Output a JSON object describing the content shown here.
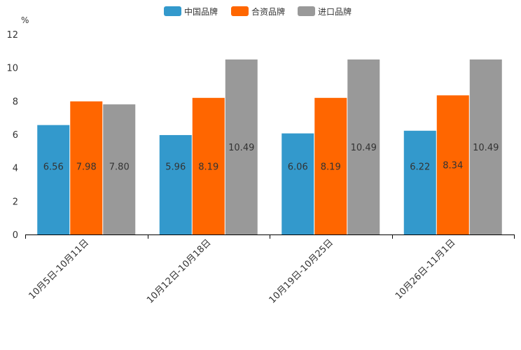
{
  "chart_data": {
    "type": "bar",
    "title": "",
    "xlabel": "",
    "ylabel": "%",
    "ylim": [
      0,
      12
    ],
    "yticks": [
      0,
      2,
      4,
      6,
      8,
      10,
      12
    ],
    "grid": false,
    "legend_position": "top-center",
    "categories": [
      "10月5日-10月11日",
      "10月12日-10月18日",
      "10月19日-10月25日",
      "10月26日-11月1日"
    ],
    "series": [
      {
        "name": "中国品牌",
        "color": "#3399cc",
        "values": [
          6.56,
          5.96,
          6.06,
          6.22
        ],
        "labels": [
          "6.56",
          "5.96",
          "6.06",
          "6.22"
        ]
      },
      {
        "name": "合资品牌",
        "color": "#ff6600",
        "values": [
          7.98,
          8.19,
          8.19,
          8.34
        ],
        "labels": [
          "7.98",
          "8.19",
          "8.19",
          "8.34"
        ]
      },
      {
        "name": "进口品牌",
        "color": "#999999",
        "values": [
          7.8,
          10.49,
          10.49,
          10.49
        ],
        "labels": [
          "7.80",
          "10.49",
          "10.49",
          "10.49"
        ]
      }
    ]
  }
}
